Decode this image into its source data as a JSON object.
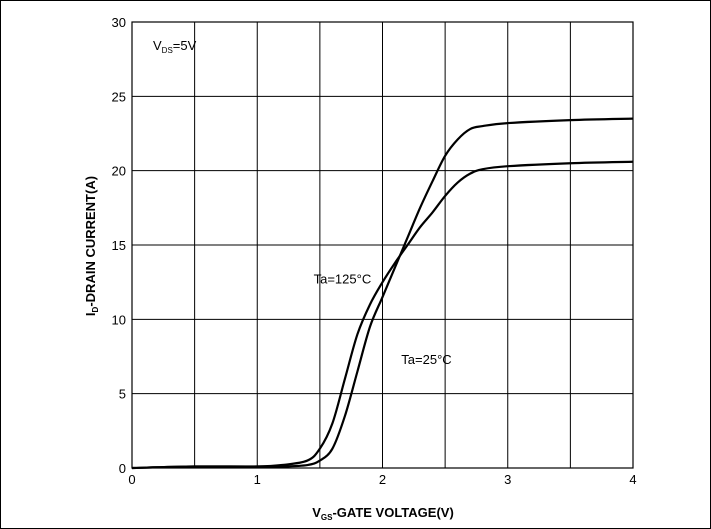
{
  "chart_data": {
    "type": "line",
    "xlabel_main": "V",
    "xlabel_sub": "GS",
    "xlabel_rest": "-GATE VOLTAGE(V)",
    "ylabel_main": "I",
    "ylabel_sub": "D",
    "ylabel_rest": "-DRAIN CURRENT(A)",
    "xlim": [
      0,
      4
    ],
    "ylim": [
      0,
      30
    ],
    "xticks": [
      0,
      1,
      2,
      3,
      4
    ],
    "yticks": [
      0,
      5,
      10,
      15,
      20,
      25,
      30
    ],
    "xtick_labels": [
      "0",
      "1",
      "2",
      "3",
      "4"
    ],
    "ytick_labels": [
      "0",
      "5",
      "10",
      "15",
      "20",
      "25",
      "30"
    ],
    "grid": true,
    "condition": {
      "main": "V",
      "sub": "DS",
      "rest": "=5V"
    },
    "series": [
      {
        "name": "Ta=125°C",
        "color": "#000000",
        "x": [
          0,
          0.5,
          1.0,
          1.2,
          1.4,
          1.5,
          1.6,
          1.7,
          1.8,
          1.9,
          2.0,
          2.1,
          2.2,
          2.3,
          2.4,
          2.5,
          2.6,
          2.7,
          2.8,
          3.0,
          3.5,
          4.0
        ],
        "y": [
          0,
          0.1,
          0.1,
          0.2,
          0.5,
          1.3,
          3.0,
          6.0,
          9.0,
          11.0,
          12.5,
          13.8,
          15.0,
          16.2,
          17.2,
          18.3,
          19.2,
          19.8,
          20.1,
          20.3,
          20.5,
          20.6
        ]
      },
      {
        "name": "Ta=25°C",
        "color": "#000000",
        "x": [
          0,
          0.5,
          1.0,
          1.2,
          1.4,
          1.5,
          1.6,
          1.7,
          1.8,
          1.9,
          2.0,
          2.1,
          2.2,
          2.3,
          2.4,
          2.5,
          2.6,
          2.7,
          2.8,
          3.0,
          3.5,
          4.0
        ],
        "y": [
          0,
          0.1,
          0.1,
          0.1,
          0.2,
          0.5,
          1.3,
          3.5,
          6.5,
          9.5,
          11.5,
          13.5,
          15.5,
          17.5,
          19.3,
          21.0,
          22.1,
          22.8,
          23.0,
          23.2,
          23.4,
          23.5
        ]
      }
    ],
    "annotations": [
      {
        "text": "Ta=125°C",
        "x": 1.45,
        "y": 12.4
      },
      {
        "text": "Ta=25°C",
        "x": 2.15,
        "y": 7.0
      }
    ]
  }
}
